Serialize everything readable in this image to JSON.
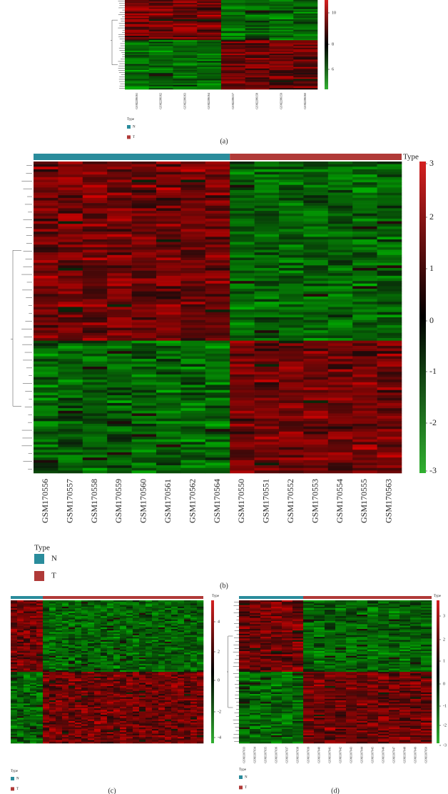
{
  "panels": [
    {
      "caption": "(a)",
      "columns": [
        "GSM2286161",
        "GSM2286162",
        "GSM2286163",
        "GSM2286164",
        "GSM2286157",
        "GSM2286158",
        "GSM2286159",
        "GSM2286160"
      ],
      "colorbar_ticks": [
        10,
        8,
        6
      ],
      "legend": {
        "title": "Type",
        "items": [
          "N",
          "T"
        ]
      }
    },
    {
      "caption": "(b)",
      "type_label": "Type",
      "columns": [
        "GSM170556",
        "GSM170557",
        "GSM170558",
        "GSM170559",
        "GSM170560",
        "GSM170561",
        "GSM170562",
        "GSM170564",
        "GSM170550",
        "GSM170551",
        "GSM170552",
        "GSM170553",
        "GSM170554",
        "GSM170555",
        "GSM170563"
      ],
      "colorbar_ticks": [
        3,
        2,
        1,
        0,
        -1,
        -2,
        -3
      ],
      "legend": {
        "title": "Type",
        "items": [
          "N",
          "T"
        ]
      }
    },
    {
      "caption": "(c)",
      "type_label": "Type",
      "colorbar_ticks": [
        4,
        2,
        0,
        -2,
        -4
      ],
      "legend": {
        "title": "Type",
        "items": [
          "N",
          "T"
        ]
      }
    },
    {
      "caption": "(d)",
      "type_label": "Type",
      "columns": [
        "GSM1307033",
        "GSM1307034",
        "GSM1307035",
        "GSM1307036",
        "GSM1307037",
        "GSM1307038",
        "GSM1307039",
        "GSM1307040",
        "GSM1307041",
        "GSM1307042",
        "GSM1307043",
        "GSM1307044",
        "GSM1307045",
        "GSM1307046",
        "GSM1307047",
        "GSM1307048",
        "GSM1307049",
        "GSM1307050"
      ],
      "colorbar_ticks": [
        3,
        2,
        1,
        0,
        -1,
        -2,
        -3
      ],
      "legend": {
        "title": "Type",
        "items": [
          "N",
          "T"
        ]
      }
    }
  ]
}
